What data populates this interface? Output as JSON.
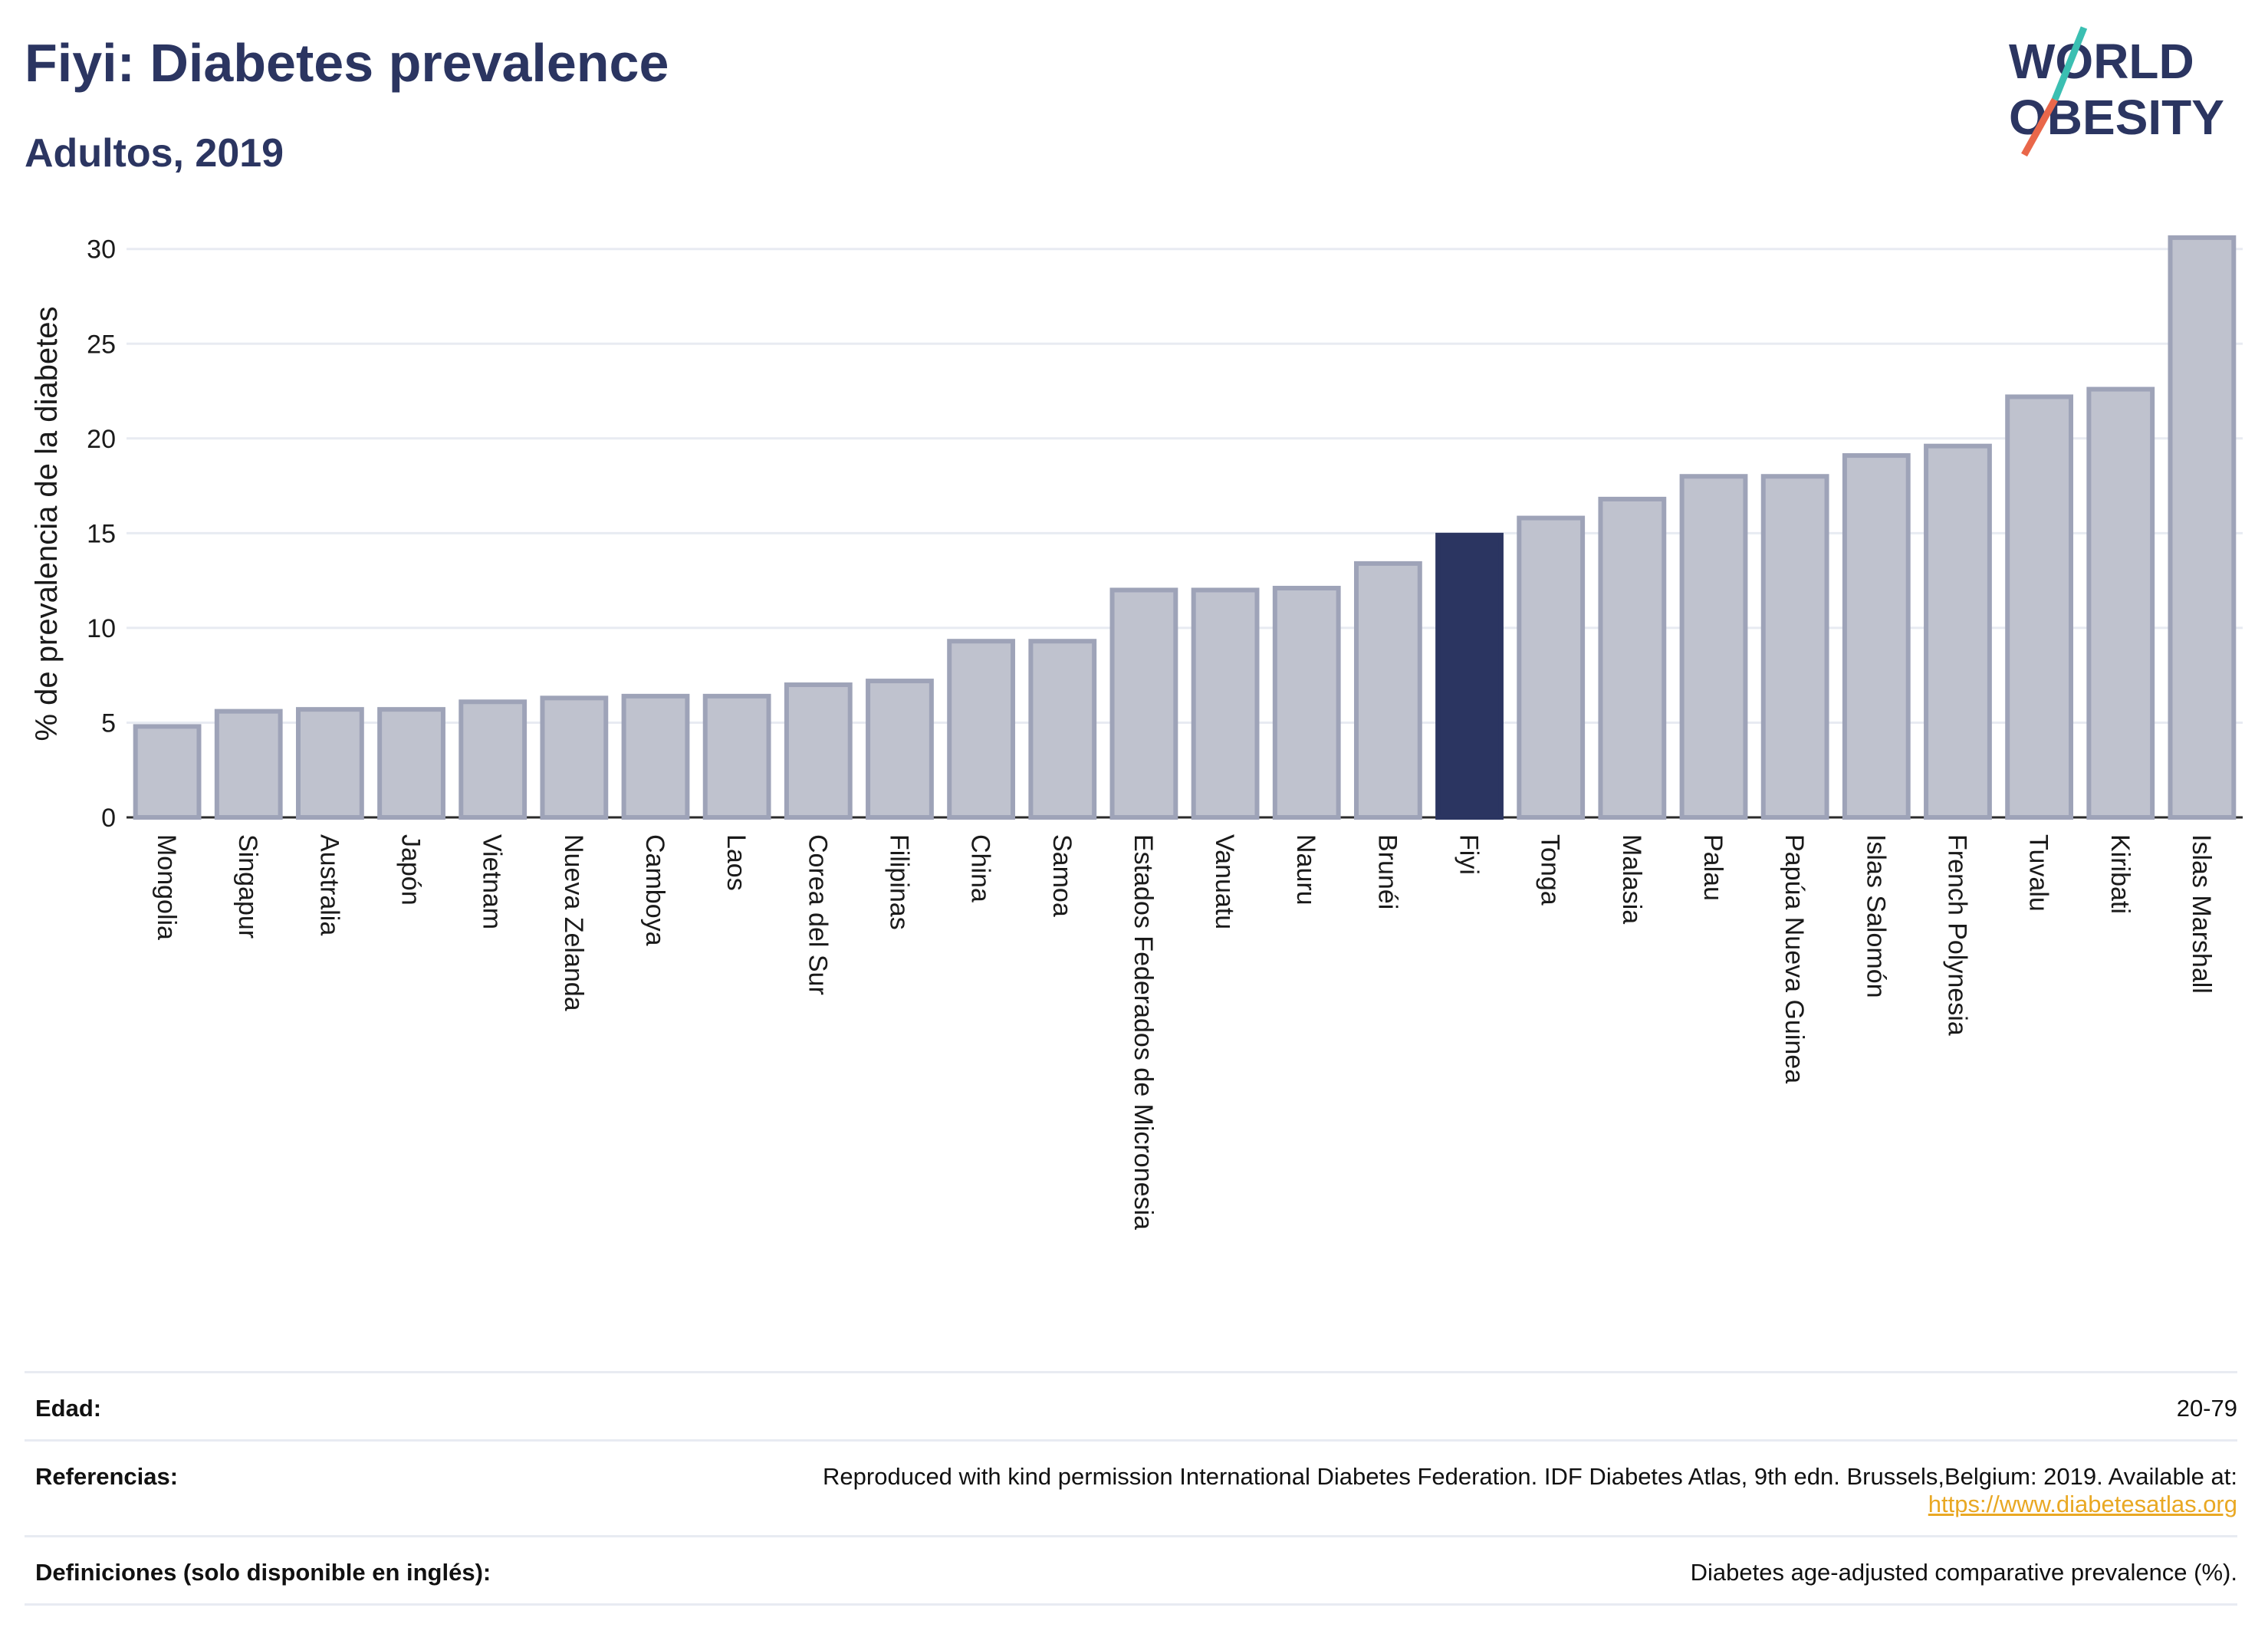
{
  "header": {
    "title": "Fiyi: Diabetes prevalence",
    "subtitle": "Adultos, 2019"
  },
  "logo": {
    "line1": "WORLD",
    "line2": "OBESITY",
    "slash_colors": [
      "#3bbfb2",
      "#e9674a"
    ],
    "text_color": "#2b3561"
  },
  "colors": {
    "highlight": "#2b3561",
    "bar": "#bfc2ce",
    "bar_border": "#9ea3b8",
    "grid": "#e8ebf2"
  },
  "chart_data": {
    "type": "bar",
    "ylabel": "% de prevalencia de la diabetes",
    "xlabel": "",
    "ylim": [
      0,
      31
    ],
    "yticks": [
      0,
      5,
      10,
      15,
      20,
      25,
      30
    ],
    "grid": true,
    "highlight": "Fiyi",
    "categories": [
      "Mongolia",
      "Singapur",
      "Australia",
      "Japón",
      "Vietnam",
      "Nueva Zelanda",
      "Camboya",
      "Laos",
      "Corea del Sur",
      "Filipinas",
      "China",
      "Samoa",
      "Estados Federados de Micronesia",
      "Vanuatu",
      "Nauru",
      "Brunéi",
      "Fiyi",
      "Tonga",
      "Malasia",
      "Palau",
      "Papúa Nueva Guinea",
      "Islas Salomón",
      "French Polynesia",
      "Tuvalu",
      "Kiribati",
      "Islas Marshall"
    ],
    "values": [
      4.8,
      5.6,
      5.7,
      5.7,
      6.1,
      6.3,
      6.4,
      6.4,
      7.0,
      7.2,
      9.3,
      9.3,
      12.0,
      12.0,
      12.1,
      13.4,
      14.9,
      15.8,
      16.8,
      18.0,
      18.0,
      19.1,
      19.6,
      22.2,
      22.6,
      30.6
    ]
  },
  "info": {
    "age_label": "Edad:",
    "age_value": "20-79",
    "refs_label": "Referencias:",
    "refs_text": "Reproduced with kind permission International Diabetes Federation. IDF Diabetes Atlas, 9th edn. Brussels,Belgium: 2019. Available at:",
    "refs_link": "https://www.diabetesatlas.org",
    "defs_label": "Definiciones (solo disponible en inglés):",
    "defs_value": "Diabetes age-adjusted comparative prevalence (%)."
  }
}
